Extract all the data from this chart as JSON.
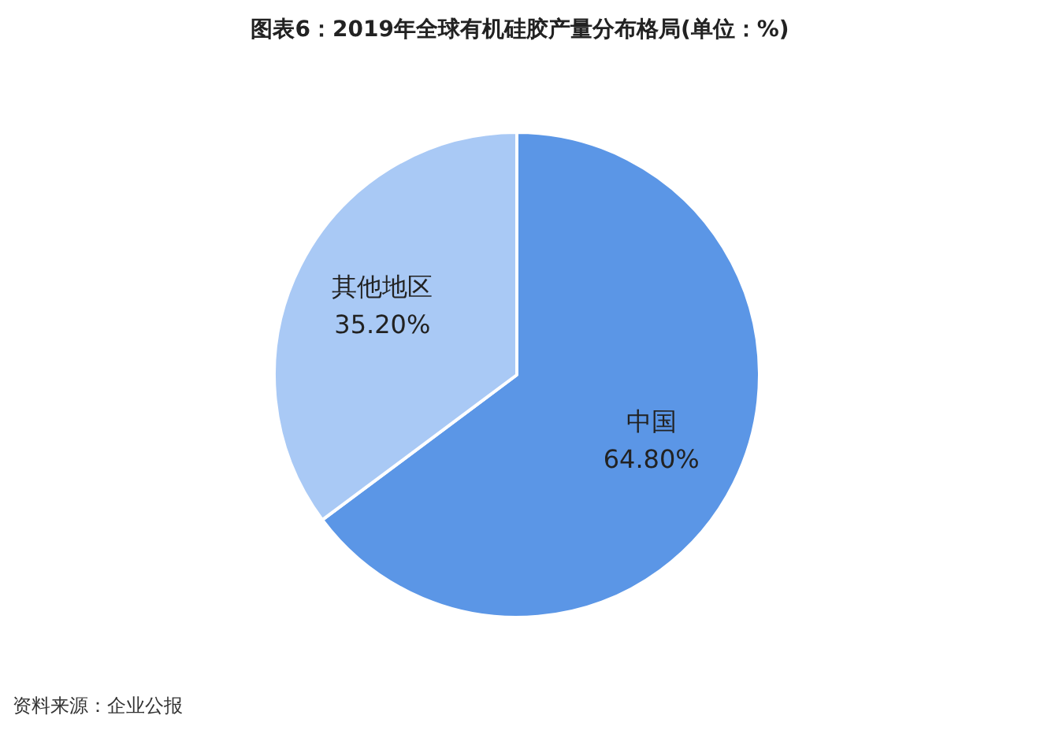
{
  "chart_data": {
    "type": "pie",
    "title": "图表6：2019年全球有机硅胶产量分布格局(单位：%)",
    "categories": [
      "中国",
      "其他地区"
    ],
    "values": [
      64.8,
      35.2
    ],
    "value_labels": [
      "64.80%",
      "35.20%"
    ],
    "colors": [
      "#5b96e6",
      "#a9c9f5"
    ],
    "annotations": [
      "资料来源：企业公报"
    ]
  }
}
